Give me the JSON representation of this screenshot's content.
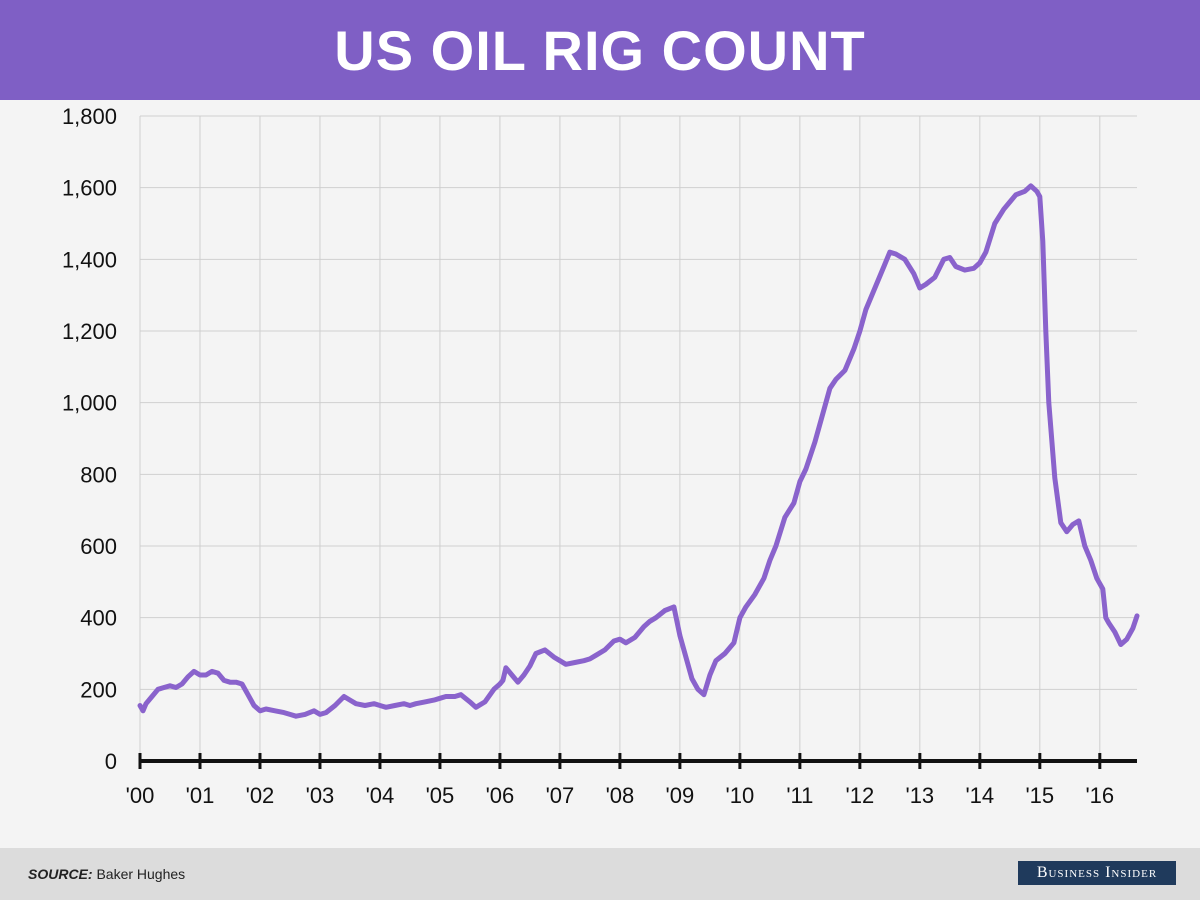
{
  "header": {
    "title": "US OIL RIG COUNT"
  },
  "footer": {
    "source_label": "SOURCE:",
    "source_text": "Baker Hughes",
    "brand": "Business Insider"
  },
  "colors": {
    "accent": "#7f5fc5",
    "line": "#8a63cc",
    "brand_bg": "#1f3a5c",
    "grid": "#cfcfcf",
    "axis": "#111111"
  },
  "chart_data": {
    "type": "line",
    "title": "US OIL RIG COUNT",
    "xlabel": "",
    "ylabel": "",
    "ylim": [
      0,
      1800
    ],
    "xlim": [
      2000,
      2016.62
    ],
    "yticks": [
      0,
      200,
      400,
      600,
      800,
      1000,
      1200,
      1400,
      1600,
      1800
    ],
    "ytick_labels": [
      "0",
      "200",
      "400",
      "600",
      "800",
      "1,000",
      "1,200",
      "1,400",
      "1,600",
      "1,800"
    ],
    "xticks": [
      2000,
      2001,
      2002,
      2003,
      2004,
      2005,
      2006,
      2007,
      2008,
      2009,
      2010,
      2011,
      2012,
      2013,
      2014,
      2015,
      2016
    ],
    "xtick_labels": [
      "'00",
      "'01",
      "'02",
      "'03",
      "'04",
      "'05",
      "'06",
      "'07",
      "'08",
      "'09",
      "'10",
      "'11",
      "'12",
      "'13",
      "'14",
      "'15",
      "'16"
    ],
    "grid": true,
    "legend": "none",
    "series": [
      {
        "x": [
          2000.0,
          2000.05,
          2000.1,
          2000.2,
          2000.3,
          2000.4,
          2000.5,
          2000.6,
          2000.7,
          2000.8,
          2000.9,
          2001.0,
          2001.1,
          2001.2,
          2001.3,
          2001.4,
          2001.5,
          2001.6,
          2001.7,
          2001.8,
          2001.9,
          2002.0,
          2002.1,
          2002.25,
          2002.4,
          2002.5,
          2002.6,
          2002.75,
          2002.9,
          2003.0,
          2003.1,
          2003.25,
          2003.4,
          2003.5,
          2003.6,
          2003.75,
          2003.9,
          2004.0,
          2004.1,
          2004.25,
          2004.4,
          2004.5,
          2004.6,
          2004.75,
          2004.9,
          2005.0,
          2005.1,
          2005.25,
          2005.35,
          2005.5,
          2005.6,
          2005.75,
          2005.9,
          2006.0,
          2006.05,
          2006.1,
          2006.2,
          2006.3,
          2006.4,
          2006.5,
          2006.6,
          2006.75,
          2006.9,
          2007.0,
          2007.1,
          2007.25,
          2007.4,
          2007.5,
          2007.6,
          2007.75,
          2007.9,
          2008.0,
          2008.1,
          2008.25,
          2008.4,
          2008.5,
          2008.6,
          2008.75,
          2008.9,
          2009.0,
          2009.1,
          2009.2,
          2009.3,
          2009.4,
          2009.5,
          2009.6,
          2009.75,
          2009.9,
          2010.0,
          2010.1,
          2010.25,
          2010.4,
          2010.5,
          2010.6,
          2010.75,
          2010.9,
          2011.0,
          2011.1,
          2011.25,
          2011.4,
          2011.5,
          2011.6,
          2011.75,
          2011.9,
          2012.0,
          2012.1,
          2012.25,
          2012.4,
          2012.5,
          2012.6,
          2012.75,
          2012.9,
          2013.0,
          2013.1,
          2013.25,
          2013.4,
          2013.5,
          2013.6,
          2013.75,
          2013.9,
          2014.0,
          2014.1,
          2014.25,
          2014.4,
          2014.5,
          2014.6,
          2014.75,
          2014.85,
          2014.95,
          2015.0,
          2015.05,
          2015.1,
          2015.15,
          2015.25,
          2015.35,
          2015.45,
          2015.55,
          2015.65,
          2015.75,
          2015.85,
          2015.95,
          2016.05,
          2016.1,
          2016.15,
          2016.25,
          2016.35,
          2016.45,
          2016.55,
          2016.62
        ],
        "y": [
          155,
          140,
          160,
          180,
          200,
          205,
          210,
          205,
          215,
          235,
          250,
          240,
          240,
          250,
          245,
          225,
          220,
          220,
          215,
          185,
          155,
          140,
          145,
          140,
          135,
          130,
          125,
          130,
          140,
          130,
          135,
          155,
          180,
          170,
          160,
          155,
          160,
          155,
          150,
          155,
          160,
          155,
          160,
          165,
          170,
          175,
          180,
          180,
          185,
          165,
          150,
          165,
          200,
          215,
          225,
          260,
          240,
          220,
          240,
          265,
          300,
          310,
          290,
          280,
          270,
          275,
          280,
          285,
          295,
          310,
          335,
          340,
          330,
          345,
          375,
          390,
          400,
          420,
          430,
          350,
          290,
          230,
          200,
          185,
          240,
          280,
          300,
          330,
          400,
          430,
          465,
          510,
          560,
          600,
          680,
          720,
          780,
          815,
          890,
          980,
          1040,
          1065,
          1090,
          1150,
          1200,
          1260,
          1320,
          1380,
          1420,
          1415,
          1400,
          1360,
          1320,
          1330,
          1350,
          1400,
          1405,
          1380,
          1370,
          1375,
          1390,
          1420,
          1500,
          1540,
          1560,
          1580,
          1590,
          1605,
          1590,
          1575,
          1450,
          1200,
          1000,
          790,
          665,
          640,
          660,
          670,
          600,
          560,
          510,
          480,
          400,
          385,
          360,
          325,
          340,
          370,
          405
        ]
      }
    ]
  }
}
